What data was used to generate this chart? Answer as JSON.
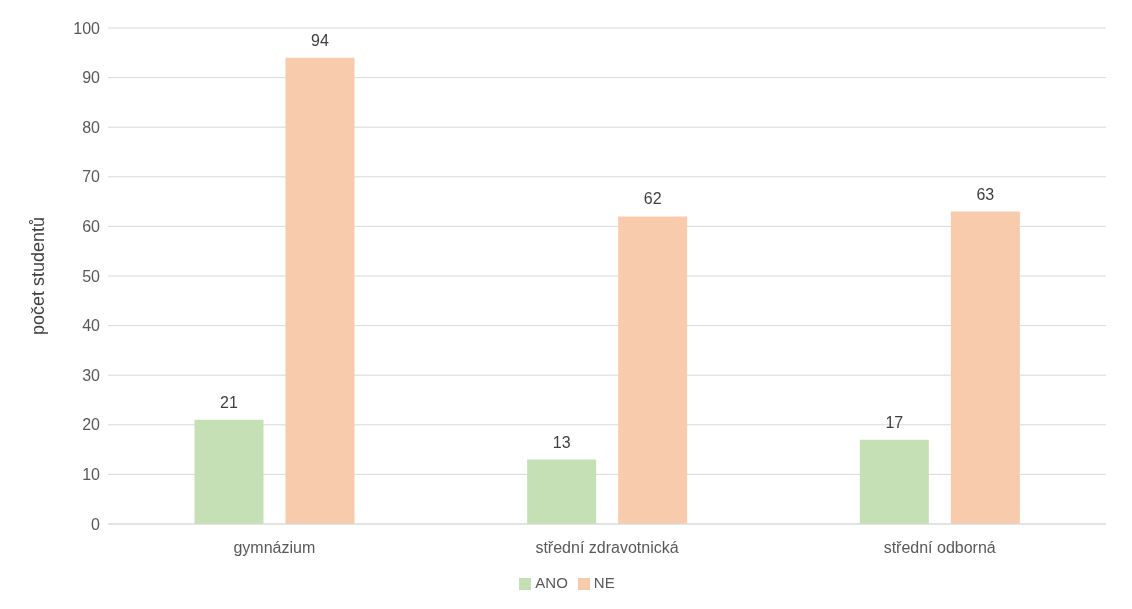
{
  "chart_data": {
    "type": "bar",
    "ylabel": "počet studentů",
    "categories": [
      "gymnázium",
      "střední zdravotnická",
      "střední odborná"
    ],
    "series": [
      {
        "name": "ANO",
        "color": "#c5e0b4",
        "values": [
          21,
          13,
          17
        ]
      },
      {
        "name": "NE",
        "color": "#f8cbad",
        "values": [
          94,
          62,
          63
        ]
      }
    ],
    "ylim": [
      0,
      100
    ],
    "yticks": [
      0,
      10,
      20,
      30,
      40,
      50,
      60,
      70,
      80,
      90,
      100
    ],
    "grid": "y",
    "legend": "bottom",
    "data_labels": true
  }
}
